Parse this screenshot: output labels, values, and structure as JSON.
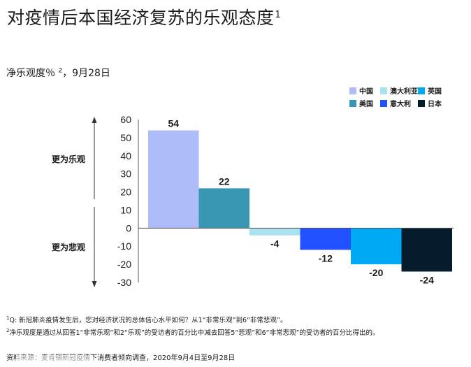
{
  "title": "对疫情后本国经济复苏的乐观态度",
  "title_sup": "1",
  "subtitle_pre": "净乐观度％",
  "subtitle_sup": "2",
  "subtitle_post": "，9月28日",
  "footnotes": [
    {
      "mark": "1",
      "text": "Q: 新冠肺炎疫情发生后，您对经济状况的总体信心水平如何？从1“非常乐观”到6“非常悲观”。"
    },
    {
      "mark": "2",
      "text": "净乐观度是通过从回答1“非常乐观”和2“乐观”的受访者的百分比中减去回答5“悲观”和6“非常悲观”的受访者的百分比得出的。"
    }
  ],
  "source": "资料来源：麦肯锡新冠疫情下消费者倾向调查，2020年9月4日至9月28日",
  "chart_data": {
    "type": "bar",
    "categories": [
      "中国",
      "美国",
      "澳大利亚",
      "意大利",
      "英国",
      "日本"
    ],
    "values": [
      54,
      22,
      -4,
      -12,
      -20,
      -24
    ],
    "value_labels": [
      "54",
      "22",
      "-4",
      "-12",
      "-20",
      "-24"
    ],
    "colors": [
      "#aebcf9",
      "#3a97b3",
      "#a9e3f0",
      "#2251ff",
      "#00a9f4",
      "#051c2c"
    ],
    "ylim": [
      -30,
      60
    ],
    "yticks": [
      60,
      50,
      40,
      30,
      20,
      10,
      0,
      -10,
      -20,
      -30
    ],
    "grid": false,
    "legend_position": "top-right",
    "legend": [
      {
        "label": "中国",
        "color": "#aebcf9"
      },
      {
        "label": "澳大利亚",
        "color": "#a9e3f0"
      },
      {
        "label": "英国",
        "color": "#00a9f4"
      },
      {
        "label": "美国",
        "color": "#3a97b3"
      },
      {
        "label": "意大利",
        "color": "#2251ff"
      },
      {
        "label": "日本",
        "color": "#051c2c"
      }
    ],
    "upper_annotation": "更为乐观",
    "lower_annotation": "更为悲观"
  }
}
